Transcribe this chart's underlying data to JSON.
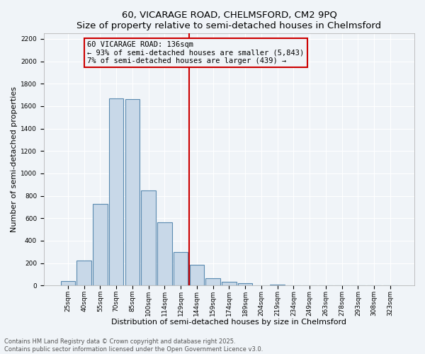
{
  "title": "60, VICARAGE ROAD, CHELMSFORD, CM2 9PQ",
  "subtitle": "Size of property relative to semi-detached houses in Chelmsford",
  "xlabel": "Distribution of semi-detached houses by size in Chelmsford",
  "ylabel": "Number of semi-detached properties",
  "categories": [
    "25sqm",
    "40sqm",
    "55sqm",
    "70sqm",
    "85sqm",
    "100sqm",
    "114sqm",
    "129sqm",
    "144sqm",
    "159sqm",
    "174sqm",
    "189sqm",
    "204sqm",
    "219sqm",
    "234sqm",
    "249sqm",
    "263sqm",
    "278sqm",
    "293sqm",
    "308sqm",
    "323sqm"
  ],
  "values": [
    40,
    225,
    730,
    1670,
    1660,
    845,
    565,
    300,
    185,
    65,
    35,
    20,
    0,
    10,
    0,
    0,
    0,
    0,
    0,
    0,
    0
  ],
  "bar_color": "#c8d8e8",
  "bar_edge_color": "#5a8ab0",
  "vline_x_index": 8,
  "vline_color": "#cc0000",
  "annotation_text": "60 VICARAGE ROAD: 136sqm\n← 93% of semi-detached houses are smaller (5,843)\n7% of semi-detached houses are larger (439) →",
  "annotation_box_color": "#cc0000",
  "ylim": [
    0,
    2250
  ],
  "yticks": [
    0,
    200,
    400,
    600,
    800,
    1000,
    1200,
    1400,
    1600,
    1800,
    2000,
    2200
  ],
  "bg_color": "#f0f4f8",
  "grid_color": "#ffffff",
  "footer_text": "Contains HM Land Registry data © Crown copyright and database right 2025.\nContains public sector information licensed under the Open Government Licence v3.0.",
  "title_fontsize": 9.5,
  "xlabel_fontsize": 8,
  "ylabel_fontsize": 8,
  "tick_fontsize": 6.5,
  "annotation_fontsize": 7.5,
  "footer_fontsize": 6
}
